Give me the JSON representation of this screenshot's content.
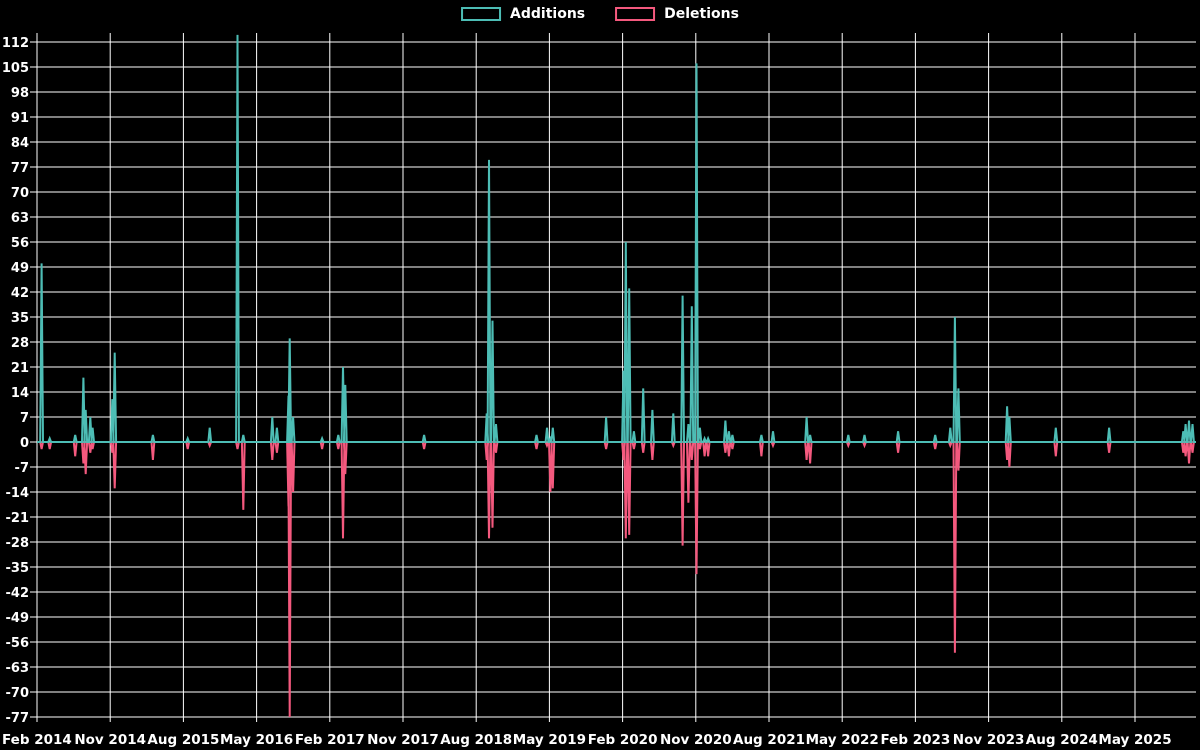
{
  "colors": {
    "background": "#000000",
    "grid": "#ffffff",
    "text": "#ffffff",
    "additions": "#4dbdb5",
    "deletions": "#f4597e"
  },
  "legend": {
    "additions_label": "Additions",
    "deletions_label": "Deletions"
  },
  "chart_data": {
    "type": "line",
    "title": "",
    "xlabel": "",
    "ylabel": "",
    "grid": true,
    "legend_position": "top-center",
    "baseline": 0,
    "y_axis": {
      "min": -77,
      "max": 112,
      "step": 7,
      "ticks": [
        112,
        105,
        98,
        91,
        84,
        77,
        70,
        63,
        56,
        49,
        42,
        35,
        28,
        21,
        14,
        7,
        0,
        -7,
        -14,
        -21,
        -28,
        -35,
        -42,
        -49,
        -56,
        -63,
        -70,
        -77
      ]
    },
    "x_axis": {
      "ticks": [
        "Feb 2014",
        "Nov 2014",
        "Aug 2015",
        "May 2016",
        "Feb 2017",
        "Nov 2017",
        "Aug 2018",
        "May 2019",
        "Feb 2020",
        "Nov 2020",
        "Aug 2021",
        "May 2022",
        "Feb 2023",
        "Nov 2023",
        "Aug 2024",
        "May 2025"
      ]
    },
    "series": [
      {
        "name": "Additions",
        "color": "#4dbdb5"
      },
      {
        "name": "Deletions",
        "color": "#f4597e"
      }
    ],
    "spikes_note": "weekly additions (positive) and deletions (negative); t = fraction along time axis; quiet weeks are 0; tallest 2016 spike is clipped at chart top (>112)",
    "spikes": [
      {
        "t": 0.004,
        "date": "2014-02",
        "add": 50,
        "del": -2
      },
      {
        "t": 0.011,
        "date": "2014-03",
        "add": 1,
        "del": -2
      },
      {
        "t": 0.033,
        "date": "2014-06",
        "add": 2,
        "del": -4
      },
      {
        "t": 0.04,
        "date": "2014-07",
        "add": 18,
        "del": -6
      },
      {
        "t": 0.042,
        "date": "2014-08",
        "add": 9,
        "del": -9
      },
      {
        "t": 0.046,
        "date": "2014-08",
        "add": 7,
        "del": -3
      },
      {
        "t": 0.048,
        "date": "2014-09",
        "add": 4,
        "del": -2
      },
      {
        "t": 0.065,
        "date": "2014-11",
        "add": 12,
        "del": -3
      },
      {
        "t": 0.067,
        "date": "2014-11",
        "add": 25,
        "del": -13
      },
      {
        "t": 0.1,
        "date": "2015-04",
        "add": 2,
        "del": -5
      },
      {
        "t": 0.13,
        "date": "2015-08",
        "add": 1,
        "del": -2
      },
      {
        "t": 0.149,
        "date": "2015-11",
        "add": 4,
        "del": -1
      },
      {
        "t": 0.173,
        "date": "2016-02",
        "add": 114,
        "del": -2
      },
      {
        "t": 0.178,
        "date": "2016-03",
        "add": 2,
        "del": -19
      },
      {
        "t": 0.203,
        "date": "2016-06",
        "add": 7,
        "del": -5
      },
      {
        "t": 0.207,
        "date": "2016-07",
        "add": 4,
        "del": -3
      },
      {
        "t": 0.217,
        "date": "2016-08",
        "add": 13,
        "del": -18
      },
      {
        "t": 0.218,
        "date": "2016-09",
        "add": 29,
        "del": -77
      },
      {
        "t": 0.221,
        "date": "2016-09",
        "add": 7,
        "del": -14
      },
      {
        "t": 0.246,
        "date": "2017-01",
        "add": 1,
        "del": -2
      },
      {
        "t": 0.26,
        "date": "2017-03",
        "add": 2,
        "del": -2
      },
      {
        "t": 0.264,
        "date": "2017-03",
        "add": 21,
        "del": -27
      },
      {
        "t": 0.266,
        "date": "2017-04",
        "add": 16,
        "del": -9
      },
      {
        "t": 0.334,
        "date": "2018-01",
        "add": 2,
        "del": -2
      },
      {
        "t": 0.388,
        "date": "2018-09",
        "add": 8,
        "del": -5
      },
      {
        "t": 0.39,
        "date": "2018-09",
        "add": 79,
        "del": -27
      },
      {
        "t": 0.393,
        "date": "2018-10",
        "add": 34,
        "del": -24
      },
      {
        "t": 0.396,
        "date": "2018-10",
        "add": 5,
        "del": -3
      },
      {
        "t": 0.431,
        "date": "2019-03",
        "add": 2,
        "del": -2
      },
      {
        "t": 0.44,
        "date": "2019-04",
        "add": 4,
        "del": -1
      },
      {
        "t": 0.443,
        "date": "2019-05",
        "add": 1,
        "del": -14
      },
      {
        "t": 0.445,
        "date": "2019-05",
        "add": 4,
        "del": -13
      },
      {
        "t": 0.491,
        "date": "2019-12",
        "add": 7,
        "del": -2
      },
      {
        "t": 0.506,
        "date": "2020-02",
        "add": 20,
        "del": -5
      },
      {
        "t": 0.508,
        "date": "2020-02",
        "add": 56,
        "del": -27
      },
      {
        "t": 0.511,
        "date": "2020-03",
        "add": 43,
        "del": -26
      },
      {
        "t": 0.515,
        "date": "2020-03",
        "add": 3,
        "del": -2
      },
      {
        "t": 0.523,
        "date": "2020-04",
        "add": 15,
        "del": -3
      },
      {
        "t": 0.531,
        "date": "2020-05",
        "add": 9,
        "del": -5
      },
      {
        "t": 0.549,
        "date": "2020-08",
        "add": 8,
        "del": -1
      },
      {
        "t": 0.557,
        "date": "2020-09",
        "add": 41,
        "del": -29
      },
      {
        "t": 0.562,
        "date": "2020-10",
        "add": 5,
        "del": -17
      },
      {
        "t": 0.565,
        "date": "2020-10",
        "add": 38,
        "del": -5
      },
      {
        "t": 0.569,
        "date": "2020-11",
        "add": 106,
        "del": -37
      },
      {
        "t": 0.572,
        "date": "2020-11",
        "add": 4,
        "del": -2
      },
      {
        "t": 0.576,
        "date": "2020-12",
        "add": 1,
        "del": -4
      },
      {
        "t": 0.579,
        "date": "2020-12",
        "add": 1,
        "del": -4
      },
      {
        "t": 0.594,
        "date": "2021-02",
        "add": 6,
        "del": -3
      },
      {
        "t": 0.597,
        "date": "2021-03",
        "add": 3,
        "del": -4
      },
      {
        "t": 0.6,
        "date": "2021-03",
        "add": 2,
        "del": -2
      },
      {
        "t": 0.625,
        "date": "2021-07",
        "add": 2,
        "del": -4
      },
      {
        "t": 0.635,
        "date": "2021-08",
        "add": 3,
        "del": -1
      },
      {
        "t": 0.664,
        "date": "2021-12",
        "add": 7,
        "del": -5
      },
      {
        "t": 0.667,
        "date": "2022-01",
        "add": 2,
        "del": -6
      },
      {
        "t": 0.7,
        "date": "2022-05",
        "add": 2,
        "del": -1
      },
      {
        "t": 0.714,
        "date": "2022-07",
        "add": 2,
        "del": -1
      },
      {
        "t": 0.743,
        "date": "2022-11",
        "add": 3,
        "del": -3
      },
      {
        "t": 0.775,
        "date": "2023-04",
        "add": 2,
        "del": -2
      },
      {
        "t": 0.788,
        "date": "2023-06",
        "add": 4,
        "del": -1
      },
      {
        "t": 0.792,
        "date": "2023-07",
        "add": 35,
        "del": -59
      },
      {
        "t": 0.795,
        "date": "2023-07",
        "add": 15,
        "del": -8
      },
      {
        "t": 0.837,
        "date": "2024-01",
        "add": 10,
        "del": -5
      },
      {
        "t": 0.839,
        "date": "2024-01",
        "add": 7,
        "del": -7
      },
      {
        "t": 0.879,
        "date": "2024-07",
        "add": 4,
        "del": -4
      },
      {
        "t": 0.925,
        "date": "2025-01",
        "add": 4,
        "del": -3
      },
      {
        "t": 0.989,
        "date": "2025-10",
        "add": 3,
        "del": -3
      },
      {
        "t": 0.991,
        "date": "2025-10",
        "add": 5,
        "del": -4
      },
      {
        "t": 0.994,
        "date": "2025-11",
        "add": 6,
        "del": -6
      },
      {
        "t": 0.997,
        "date": "2025-11",
        "add": 5,
        "del": -3
      }
    ]
  }
}
